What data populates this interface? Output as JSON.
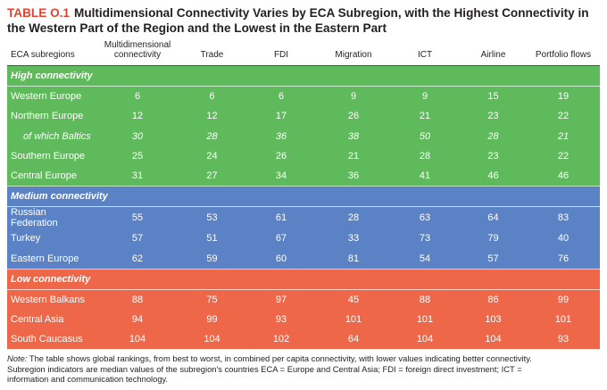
{
  "table_no": "TABLE O.1",
  "title": "Multidimensional Connectivity Varies by ECA Subregion, with the Highest Connectivity in the Western Part of the Region and the Lowest in the Eastern Part",
  "headers": [
    "ECA subregions",
    "Multidimensional connectivity",
    "Trade",
    "FDI",
    "Migration",
    "ICT",
    "Airline",
    "Portfolio flows"
  ],
  "sections": [
    {
      "label": "High connectivity",
      "color": "#5fba5b",
      "rows": [
        {
          "name": "Western Europe",
          "values": [
            "6",
            "6",
            "6",
            "9",
            "9",
            "15",
            "19"
          ],
          "italic": false
        },
        {
          "name": "Northern Europe",
          "values": [
            "12",
            "12",
            "17",
            "26",
            "21",
            "23",
            "22"
          ],
          "italic": false
        },
        {
          "name": "of which Baltics",
          "values": [
            "30",
            "28",
            "36",
            "38",
            "50",
            "28",
            "21"
          ],
          "italic": true
        },
        {
          "name": "Southern Europe",
          "values": [
            "25",
            "24",
            "26",
            "21",
            "28",
            "23",
            "22"
          ],
          "italic": false
        },
        {
          "name": "Central Europe",
          "values": [
            "31",
            "27",
            "34",
            "36",
            "41",
            "46",
            "46"
          ],
          "italic": false
        }
      ]
    },
    {
      "label": "Medium connectivity",
      "color": "#5b82c4",
      "rows": [
        {
          "name": "Russian Federation",
          "values": [
            "55",
            "53",
            "61",
            "28",
            "63",
            "64",
            "83"
          ],
          "italic": false
        },
        {
          "name": "Turkey",
          "values": [
            "57",
            "51",
            "67",
            "33",
            "73",
            "79",
            "40"
          ],
          "italic": false
        },
        {
          "name": "Eastern Europe",
          "values": [
            "62",
            "59",
            "60",
            "81",
            "54",
            "57",
            "76"
          ],
          "italic": false
        }
      ]
    },
    {
      "label": "Low connectivity",
      "color": "#ee6749",
      "rows": [
        {
          "name": "Western Balkans",
          "values": [
            "88",
            "75",
            "97",
            "45",
            "88",
            "86",
            "99"
          ],
          "italic": false
        },
        {
          "name": "Central Asia",
          "values": [
            "94",
            "99",
            "93",
            "101",
            "101",
            "103",
            "101"
          ],
          "italic": false
        },
        {
          "name": "South Caucasus",
          "values": [
            "104",
            "104",
            "102",
            "64",
            "104",
            "104",
            "93"
          ],
          "italic": false
        }
      ]
    }
  ],
  "note_label": "Note:",
  "note_text": "The table shows global rankings, from best to worst, in combined per capita connectivity, with lower values indicating better connectivity. Subregion indicators are median values of the subregion's countries ECA = Europe and Central Asia; FDI = foreign direct investment; ICT = information and communication technology."
}
